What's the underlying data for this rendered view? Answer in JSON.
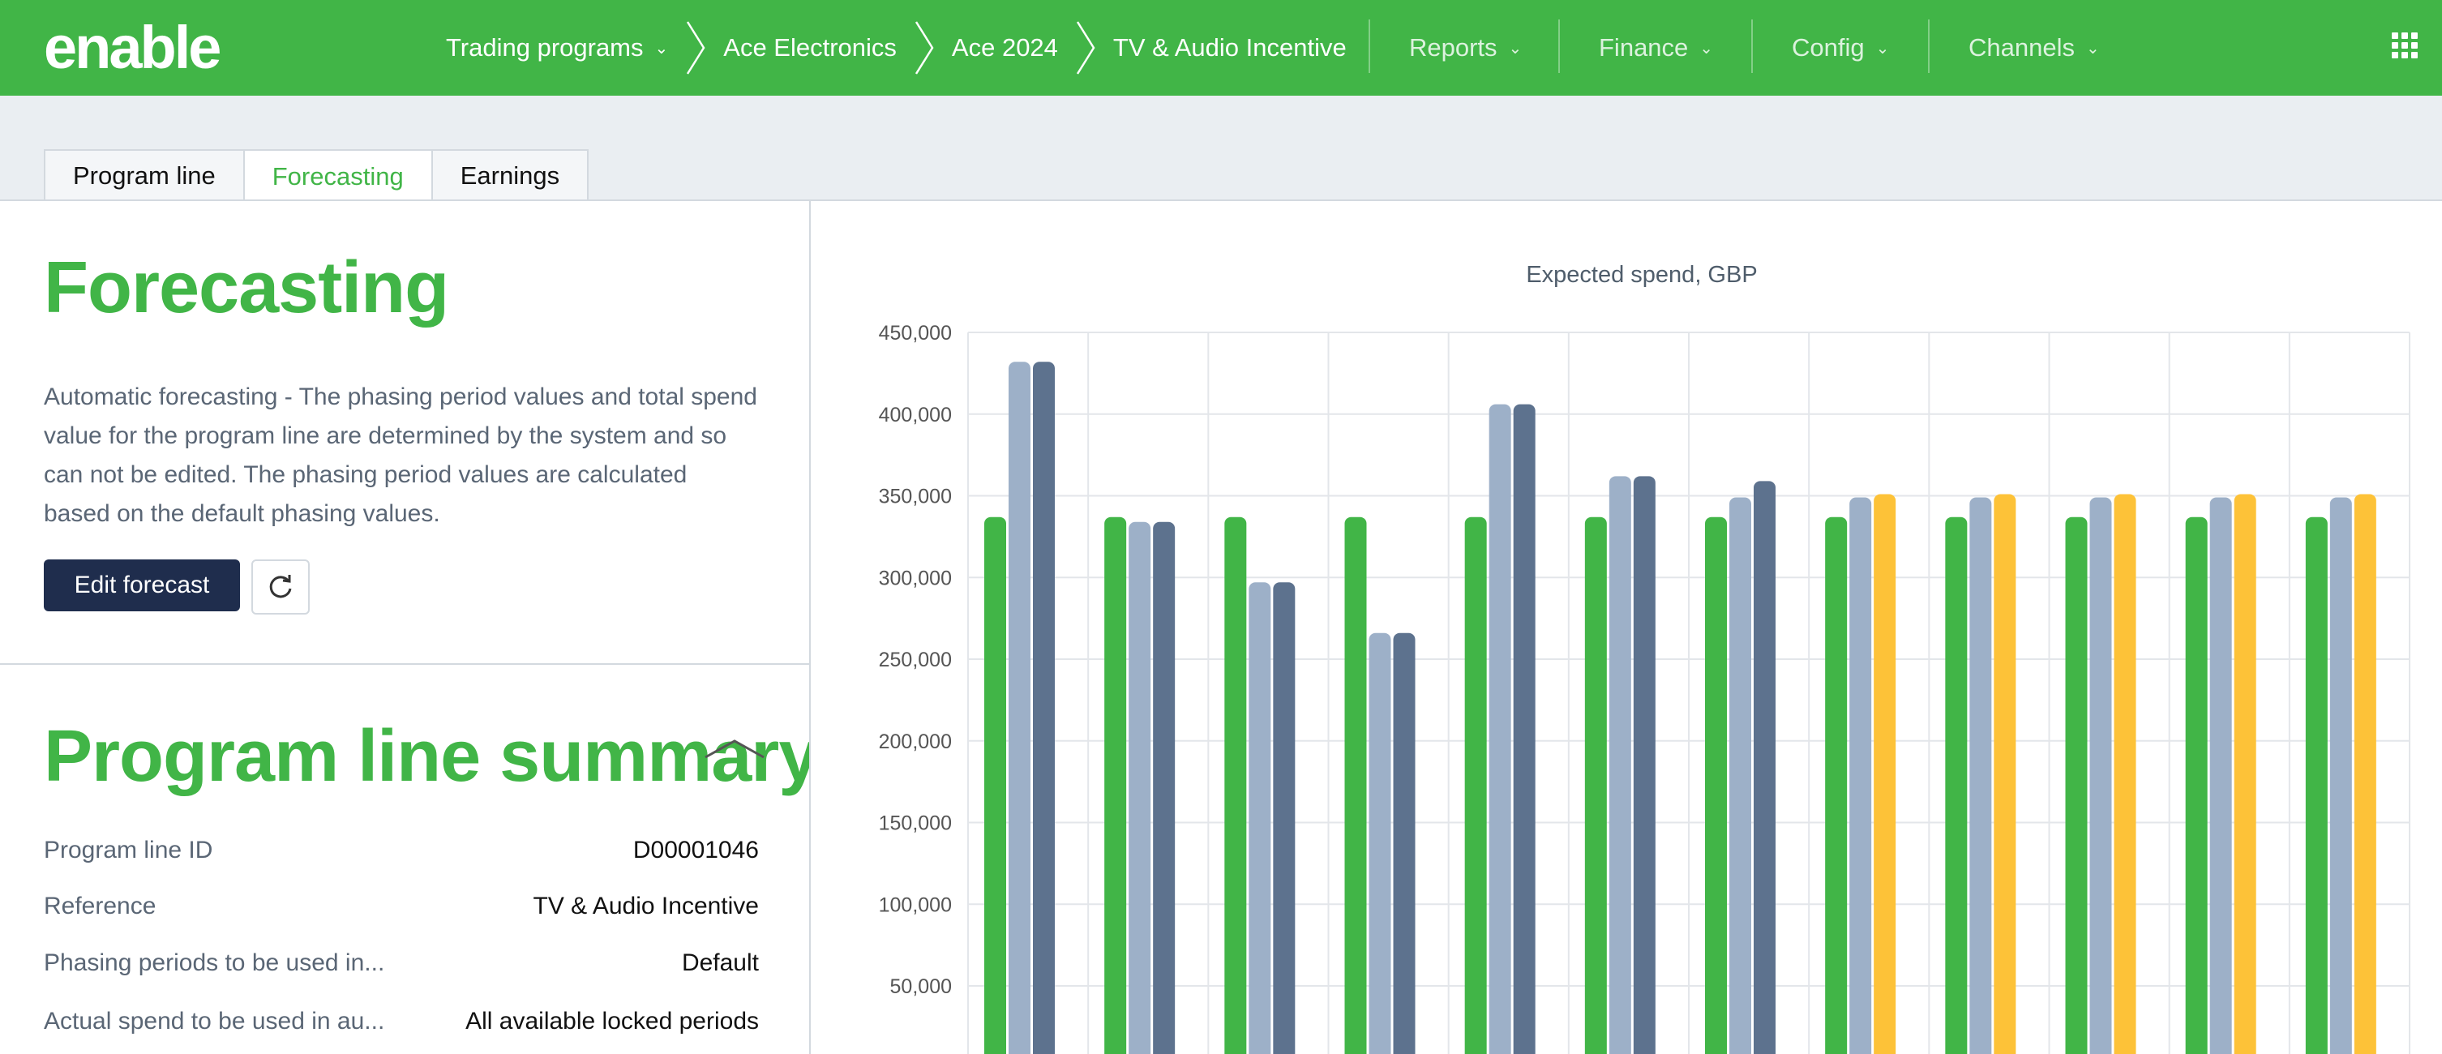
{
  "brand": {
    "logo_text": "enable",
    "accent": "#41b547",
    "dark": "#1f2d4d"
  },
  "breadcrumbs": [
    {
      "label": "Trading programs",
      "has_dropdown": true
    },
    {
      "label": "Ace Electronics",
      "has_dropdown": false
    },
    {
      "label": "Ace 2024",
      "has_dropdown": false
    },
    {
      "label": "TV & Audio Incentive",
      "has_dropdown": false
    }
  ],
  "nav": [
    {
      "label": "Reports"
    },
    {
      "label": "Finance"
    },
    {
      "label": "Config"
    },
    {
      "label": "Channels"
    }
  ],
  "tabs": [
    {
      "label": "Program line",
      "active": false
    },
    {
      "label": "Forecasting",
      "active": true
    },
    {
      "label": "Earnings",
      "active": false
    }
  ],
  "forecasting": {
    "title": "Forecasting",
    "description": "Automatic forecasting - The phasing period values and total spend value for the program line are determined by the system and so can not be edited. The phasing period values are calculated based on the default phasing values.",
    "edit_button": "Edit forecast"
  },
  "summary": {
    "title": "Program line summary",
    "rows": [
      {
        "label": "Program line ID",
        "value": "D00001046"
      },
      {
        "label": "Reference",
        "value": "TV & Audio Incentive"
      },
      {
        "label": "Phasing periods to be used in...",
        "value": "Default"
      },
      {
        "label": "Actual spend to be used in au...",
        "value": "All available locked periods"
      }
    ]
  },
  "chart_data": {
    "type": "bar",
    "title": "Expected spend, GBP",
    "ylim": [
      0,
      450000
    ],
    "yticks": [
      "450,000",
      "400,000",
      "350,000",
      "300,000",
      "250,000",
      "200,000",
      "150,000",
      "100,000",
      "50,000"
    ],
    "ytick_values": [
      450000,
      400000,
      350000,
      300000,
      250000,
      200000,
      150000,
      100000,
      50000
    ],
    "grid": true,
    "group_count": 12,
    "colors": {
      "a": "#41b547",
      "b": "#9db0c8",
      "c": "#5d728e",
      "d": "#fdc238"
    },
    "groups": [
      {
        "bars": [
          {
            "s": "a",
            "v": 337000
          },
          {
            "s": "b",
            "v": 432000
          },
          {
            "s": "c",
            "v": 432000
          }
        ]
      },
      {
        "bars": [
          {
            "s": "a",
            "v": 337000
          },
          {
            "s": "b",
            "v": 334000
          },
          {
            "s": "c",
            "v": 334000
          }
        ]
      },
      {
        "bars": [
          {
            "s": "a",
            "v": 337000
          },
          {
            "s": "b",
            "v": 297000
          },
          {
            "s": "c",
            "v": 297000
          }
        ]
      },
      {
        "bars": [
          {
            "s": "a",
            "v": 337000
          },
          {
            "s": "b",
            "v": 266000
          },
          {
            "s": "c",
            "v": 266000
          }
        ]
      },
      {
        "bars": [
          {
            "s": "a",
            "v": 337000
          },
          {
            "s": "b",
            "v": 406000
          },
          {
            "s": "c",
            "v": 406000
          }
        ]
      },
      {
        "bars": [
          {
            "s": "a",
            "v": 337000
          },
          {
            "s": "b",
            "v": 362000
          },
          {
            "s": "c",
            "v": 362000
          }
        ]
      },
      {
        "bars": [
          {
            "s": "a",
            "v": 337000
          },
          {
            "s": "b",
            "v": 349000
          },
          {
            "s": "c",
            "v": 359000
          }
        ]
      },
      {
        "bars": [
          {
            "s": "a",
            "v": 337000
          },
          {
            "s": "b",
            "v": 349000
          },
          {
            "s": "d",
            "v": 351000
          }
        ]
      },
      {
        "bars": [
          {
            "s": "a",
            "v": 337000
          },
          {
            "s": "b",
            "v": 349000
          },
          {
            "s": "d",
            "v": 351000
          }
        ]
      },
      {
        "bars": [
          {
            "s": "a",
            "v": 337000
          },
          {
            "s": "b",
            "v": 349000
          },
          {
            "s": "d",
            "v": 351000
          }
        ]
      },
      {
        "bars": [
          {
            "s": "a",
            "v": 337000
          },
          {
            "s": "b",
            "v": 349000
          },
          {
            "s": "d",
            "v": 351000
          }
        ]
      },
      {
        "bars": [
          {
            "s": "a",
            "v": 337000
          },
          {
            "s": "b",
            "v": 349000
          },
          {
            "s": "d",
            "v": 351000
          }
        ]
      }
    ]
  }
}
